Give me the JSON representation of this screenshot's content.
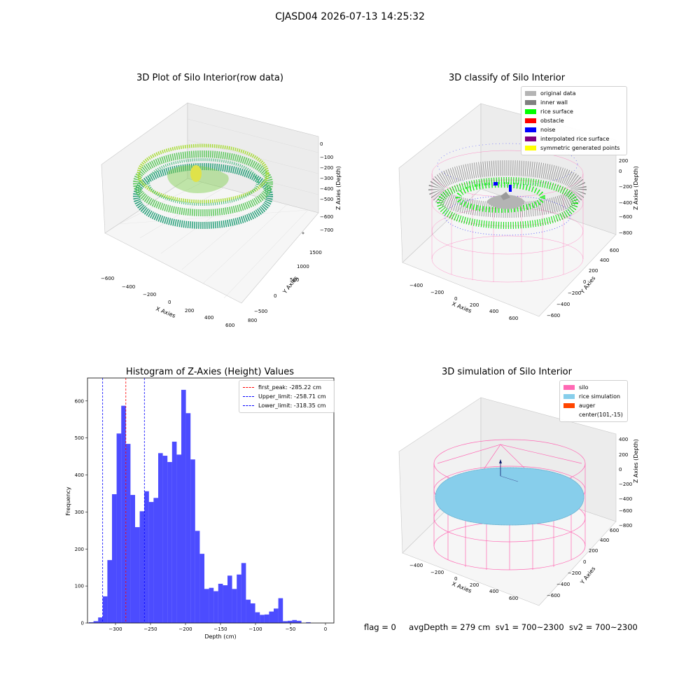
{
  "suptitle": "CJASD04 2026-07-13 14:25:32",
  "panels": {
    "raw": {
      "title": "3D Plot of Silo Interior(row data)",
      "xlabel": "X Axies",
      "ylabel": "Y Axies",
      "zlabel": "Z Axies (Depth)",
      "xticks": [
        "−600",
        "−400",
        "−200",
        "0",
        "200",
        "400",
        "600",
        "800"
      ],
      "yticks": [
        "−500",
        "0",
        "500",
        "1000",
        "1500"
      ],
      "zticks": [
        "0",
        "−100",
        "−200",
        "−300",
        "−400",
        "−500",
        "−600",
        "−700"
      ]
    },
    "classify": {
      "title": "3D classify of Silo Interior",
      "xlabel": "X Axies",
      "ylabel": "Y Axies",
      "zlabel": "Z Axies (Depth)",
      "xticks": [
        "−400",
        "−200",
        "0",
        "200",
        "400",
        "600"
      ],
      "yticks": [
        "−600",
        "−400",
        "−200",
        "0",
        "200",
        "400",
        "600"
      ],
      "zticks": [
        "200",
        "0",
        "−200",
        "−400",
        "−600",
        "−800"
      ],
      "legend": [
        {
          "label": "original data",
          "color": "#b4b4b4"
        },
        {
          "label": "inner wall",
          "color": "#808080"
        },
        {
          "label": "rice surface",
          "color": "#00ff00"
        },
        {
          "label": "obstacle",
          "color": "#ff0000"
        },
        {
          "label": "noise",
          "color": "#0000ff"
        },
        {
          "label": "interpolated rice surface",
          "color": "#800080"
        },
        {
          "label": "symmetric generated points",
          "color": "#ffff00"
        }
      ]
    },
    "simulation": {
      "title": "3D simulation of Silo Interior",
      "xlabel": "X Axies",
      "ylabel": "Y Axies",
      "zlabel": "Z Axies (Depth)",
      "xticks": [
        "−400",
        "−200",
        "0",
        "200",
        "400",
        "600"
      ],
      "yticks": [
        "−600",
        "−400",
        "−200",
        "0",
        "200",
        "400",
        "600"
      ],
      "zticks": [
        "400",
        "200",
        "0",
        "−200",
        "−400",
        "−600",
        "−800"
      ],
      "legend": [
        {
          "label": "silo",
          "color": "#ff69b4"
        },
        {
          "label": "rice simulation",
          "color": "#87ceeb"
        },
        {
          "label": "auger",
          "color": "#ff4500"
        },
        {
          "label": "center(101,-15)",
          "color": ""
        }
      ]
    }
  },
  "chart_data": {
    "type": "bar",
    "title": "Histogram of Z-Axies (Height) Values",
    "xlabel": "Depth (cm)",
    "ylabel": "Frequency",
    "xlim": [
      -340,
      12
    ],
    "ylim": [
      0,
      662
    ],
    "bin_width": 6.6,
    "bin_start": -338,
    "values": [
      2,
      5,
      15,
      72,
      170,
      348,
      512,
      587,
      484,
      346,
      259,
      302,
      356,
      327,
      338,
      459,
      452,
      435,
      490,
      455,
      630,
      567,
      442,
      249,
      187,
      92,
      95,
      86,
      106,
      102,
      128,
      92,
      131,
      162,
      63,
      53,
      29,
      22,
      23,
      31,
      39,
      67,
      5,
      6,
      8,
      6,
      0,
      2
    ],
    "color": "#0000ff",
    "xticks": [
      -300,
      -250,
      -200,
      -150,
      -100,
      -50,
      0
    ],
    "xtick_labels": [
      "−300",
      "−250",
      "−200",
      "−150",
      "−100",
      "−50",
      "0"
    ],
    "yticks": [
      0,
      100,
      200,
      300,
      400,
      500,
      600
    ],
    "ytick_labels": [
      "0",
      "100",
      "200",
      "300",
      "400",
      "500",
      "600"
    ],
    "lines": [
      {
        "label": "first_peak: -285.22 cm",
        "x": -285.22,
        "color": "#ff0000"
      },
      {
        "label": "Upper_limit: -258.71 cm",
        "x": -258.71,
        "color": "#0000ff"
      },
      {
        "label": "Lower_limit: -318.35 cm",
        "x": -318.35,
        "color": "#0000ff"
      }
    ]
  },
  "footer": {
    "flag": "flag = 0",
    "avg": "avgDepth = 279 cm",
    "sv1": "sv1 = 700~2300",
    "sv2": "sv2 = 700~2300"
  }
}
